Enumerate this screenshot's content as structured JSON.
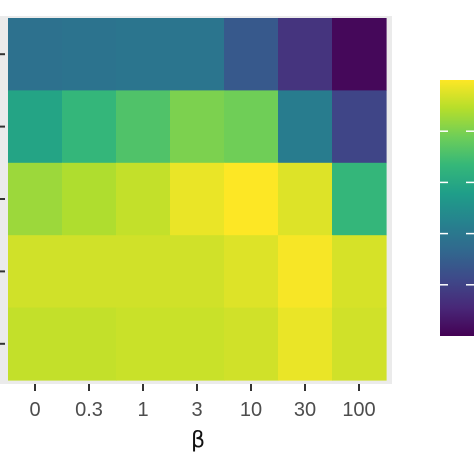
{
  "chart_data": {
    "type": "heatmap",
    "title": "",
    "xlabel": "β",
    "ylabel": "",
    "x_categories": [
      "0",
      "0.3",
      "1",
      "3",
      "10",
      "30",
      "100"
    ],
    "row_count": 5,
    "values": [
      [
        0.37,
        0.38,
        0.39,
        0.39,
        0.28,
        0.15,
        0.02
      ],
      [
        0.58,
        0.66,
        0.72,
        0.8,
        0.78,
        0.42,
        0.21
      ],
      [
        0.85,
        0.88,
        0.91,
        0.97,
        1.0,
        0.95,
        0.66
      ],
      [
        0.93,
        0.93,
        0.93,
        0.93,
        0.95,
        0.99,
        0.94
      ],
      [
        0.91,
        0.91,
        0.92,
        0.92,
        0.93,
        0.97,
        0.93
      ]
    ],
    "value_range": [
      0,
      1
    ],
    "colormap": [
      "#440154",
      "#482878",
      "#3e4989",
      "#31688e",
      "#26828e",
      "#1f9e89",
      "#35b779",
      "#6ece58",
      "#b5de2b",
      "#fde725"
    ],
    "panel_background": "#ebebeb",
    "colorbar": {
      "visible": true,
      "tick_count": 4
    },
    "grid": false
  }
}
